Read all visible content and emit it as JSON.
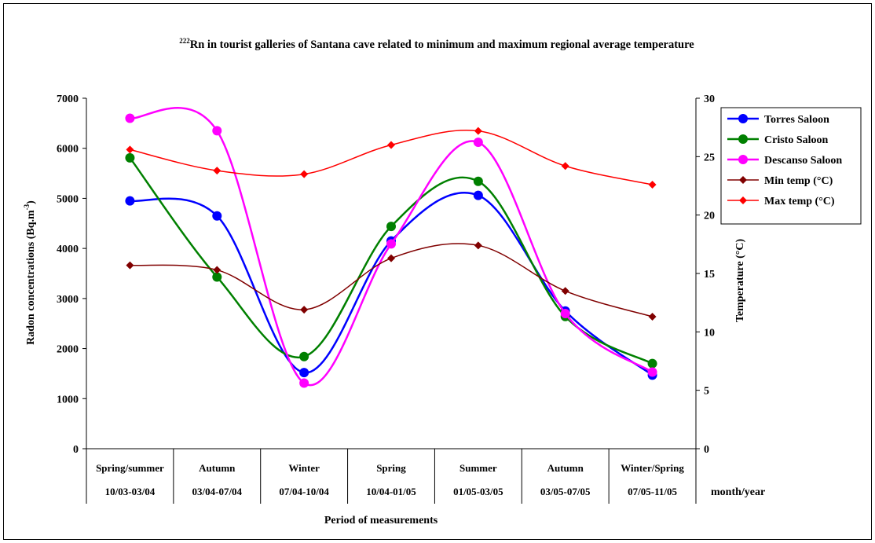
{
  "chart_data": {
    "type": "line",
    "title": {
      "superscript": "222",
      "text": "Rn in tourist galleries of Santana cave related to minimum and maximum regional average temperature"
    },
    "left_axis": {
      "label": "Radon concentrations (Bq.m",
      "label_sup": "-3",
      "label_close": ")",
      "ylim": [
        0,
        7000
      ],
      "ticks": [
        "0",
        "1000",
        "2000",
        "3000",
        "4000",
        "5000",
        "6000",
        "7000"
      ]
    },
    "right_axis": {
      "label": "Temperature (°C)",
      "ylim": [
        0,
        30
      ],
      "ticks": [
        "0",
        "5",
        "10",
        "15",
        "20",
        "25",
        "30"
      ]
    },
    "categories": [
      {
        "season": "Spring/summer",
        "period": "10/03-03/04"
      },
      {
        "season": "Autumn",
        "period": "03/04-07/04"
      },
      {
        "season": "Winter",
        "period": "07/04-10/04"
      },
      {
        "season": "Spring",
        "period": "10/04-01/05"
      },
      {
        "season": "Summer",
        "period": "01/05-03/05"
      },
      {
        "season": "Autumn",
        "period": "03/05-07/05"
      },
      {
        "season": "Winter/Spring",
        "period": "07/05-11/05"
      }
    ],
    "row_label": "month/year",
    "xlabel": "Period of measurements",
    "series": [
      {
        "name": "Torres Saloon",
        "axis": "left",
        "color": "#0000ff",
        "marker": "circle",
        "values": [
          4950,
          4650,
          1520,
          4150,
          5060,
          2750,
          1470
        ]
      },
      {
        "name": "Cristo Saloon",
        "axis": "left",
        "color": "#008000",
        "marker": "circle",
        "values": [
          5810,
          3430,
          1840,
          4440,
          5340,
          2640,
          1700
        ]
      },
      {
        "name": "Descanso Saloon",
        "axis": "left",
        "color": "#ff00ff",
        "marker": "circle",
        "values": [
          6600,
          6350,
          1310,
          4090,
          6120,
          2700,
          1530
        ]
      },
      {
        "name": "Min temp (°C)",
        "axis": "right",
        "color": "#800000",
        "marker": "diamond",
        "values": [
          15.7,
          15.3,
          11.9,
          16.3,
          17.4,
          13.5,
          11.3
        ]
      },
      {
        "name": "Max temp (°C)",
        "axis": "right",
        "color": "#ff0000",
        "marker": "diamond",
        "values": [
          25.6,
          23.8,
          23.5,
          26.0,
          27.2,
          24.2,
          22.6
        ]
      }
    ],
    "legend_position": "right",
    "grid": false
  }
}
